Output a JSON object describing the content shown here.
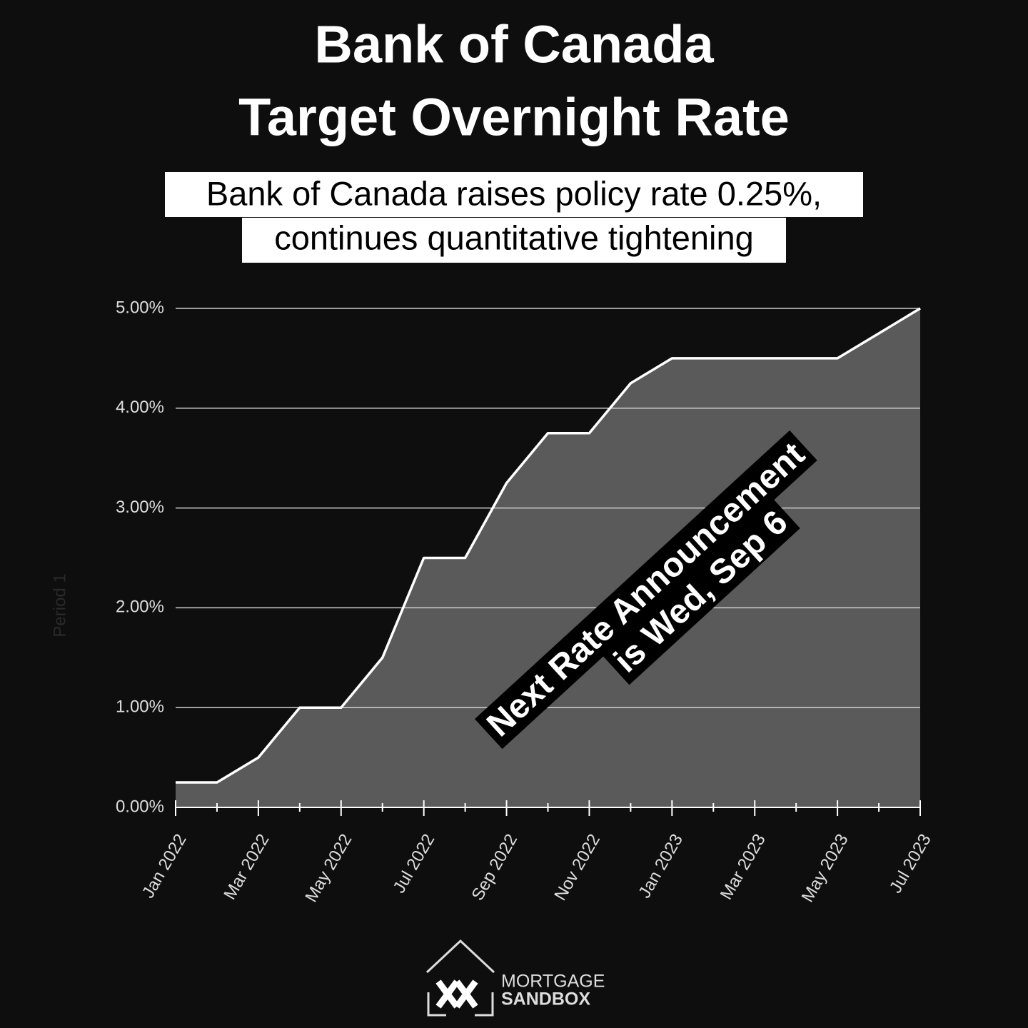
{
  "chart_data": {
    "type": "area",
    "title": [
      "Bank of Canada",
      "Target Overnight Rate"
    ],
    "subtitle": [
      "Bank of Canada raises policy rate 0.25%,",
      "continues quantitative tightening"
    ],
    "y_label": "Period 1",
    "categories": [
      "Jan 2022",
      null,
      "Mar 2022",
      null,
      "May 2022",
      null,
      "Jul 2022",
      null,
      "Sep 2022",
      null,
      "Nov 2022",
      null,
      "Jan 2023",
      null,
      "Mar 2023",
      null,
      "May 2023",
      null,
      "Jul 2023"
    ],
    "values": [
      0.25,
      0.25,
      0.5,
      1.0,
      1.0,
      1.5,
      2.5,
      2.5,
      3.25,
      3.75,
      3.75,
      4.25,
      4.5,
      4.5,
      4.5,
      4.5,
      4.5,
      4.75,
      5.0
    ],
    "color": "#ffffff",
    "fill_color": "#5a5a5a",
    "ylim": [
      0,
      5
    ],
    "yticks": [
      {
        "value": 0,
        "label": "0.00%"
      },
      {
        "value": 1,
        "label": "1.00%"
      },
      {
        "value": 2,
        "label": "2.00%"
      },
      {
        "value": 3,
        "label": "3.00%"
      },
      {
        "value": 4,
        "label": "4.00%"
      },
      {
        "value": 5,
        "label": "5.00%"
      }
    ],
    "grid": true,
    "annotation": [
      "Next Rate Announcement",
      "is Wed, Sep 6"
    ],
    "logo": [
      "MORTGAGE",
      "SANDBOX"
    ]
  }
}
